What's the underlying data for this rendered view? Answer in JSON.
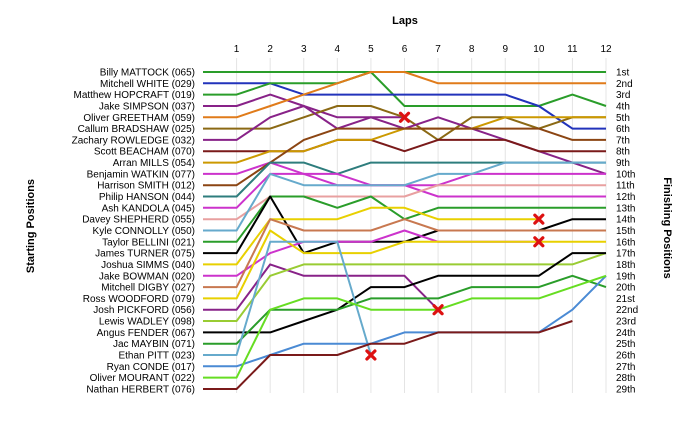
{
  "chart_data": {
    "type": "line",
    "title": "",
    "xlabel": "Laps",
    "ylabel_left": "Starting Positions",
    "ylabel_right": "Finishing Positions",
    "laps": [
      1,
      2,
      3,
      4,
      5,
      6,
      7,
      8,
      9,
      10,
      11,
      12
    ],
    "finishing_labels": [
      "1st",
      "2nd",
      "3rd",
      "4th",
      "5th",
      "6th",
      "7th",
      "8th",
      "9th",
      "10th",
      "11th",
      "12th",
      "13th",
      "14th",
      "15th",
      "16th",
      "17th",
      "18th",
      "19th",
      "20th",
      "21st",
      "22nd",
      "23rd",
      "24th",
      "25th",
      "26th",
      "27th",
      "28th",
      "29th"
    ],
    "grid": true,
    "retirement_marker": "red-x",
    "series": [
      {
        "name": "Billy MATTOCK (065)",
        "color": "#2a9d2a",
        "positions": [
          1,
          1,
          1,
          1,
          1,
          4,
          4,
          4,
          4,
          4,
          3,
          4
        ]
      },
      {
        "name": "Mitchell WHITE (029)",
        "color": "#2233bb",
        "positions": [
          2,
          2,
          3,
          3,
          3,
          3,
          3,
          3,
          3,
          4,
          6,
          6
        ]
      },
      {
        "name": "Matthew HOPCRAFT (019)",
        "color": "#2a9d2a",
        "positions": [
          3,
          2,
          2,
          2,
          1,
          1,
          1,
          1,
          1,
          1,
          1,
          1
        ]
      },
      {
        "name": "Jake SIMPSON (037)",
        "color": "#882288",
        "positions": [
          4,
          3,
          4,
          5,
          5,
          5,
          null,
          null,
          null,
          null,
          null,
          null
        ],
        "retired_at": {
          "lap": 6,
          "position": 5
        }
      },
      {
        "name": "Oliver GREETHAM (059)",
        "color": "#e07b1a",
        "positions": [
          5,
          4,
          3,
          2,
          1,
          1,
          2,
          2,
          2,
          2,
          2,
          2
        ]
      },
      {
        "name": "Callum BRADSHAW (025)",
        "color": "#8b6914",
        "positions": [
          6,
          6,
          5,
          4,
          4,
          5,
          7,
          5,
          5,
          6,
          5,
          5
        ]
      },
      {
        "name": "Zachary ROWLEDGE (032)",
        "color": "#882288",
        "positions": [
          7,
          5,
          4,
          6,
          5,
          6,
          5,
          6,
          7,
          8,
          9,
          10
        ]
      },
      {
        "name": "Scott BEACHAM (070)",
        "color": "#7a1a1a",
        "positions": [
          8,
          8,
          8,
          7,
          7,
          8,
          7,
          7,
          7,
          8,
          8,
          8
        ]
      },
      {
        "name": "Arran MILLS (054)",
        "color": "#cc9900",
        "positions": [
          9,
          8,
          8,
          7,
          7,
          6,
          6,
          6,
          5,
          5,
          5,
          5
        ]
      },
      {
        "name": "Benjamin WATKIN (077)",
        "color": "#cc33cc",
        "positions": [
          10,
          9,
          10,
          11,
          11,
          11,
          11,
          10,
          10,
          10,
          10,
          10
        ]
      },
      {
        "name": "Harrison SMITH (012)",
        "color": "#8b4513",
        "positions": [
          11,
          9,
          7,
          6,
          6,
          6,
          6,
          6,
          6,
          6,
          7,
          7
        ]
      },
      {
        "name": "Philip HANSON (044)",
        "color": "#2e7d7d",
        "positions": [
          12,
          9,
          9,
          10,
          9,
          9,
          9,
          9,
          9,
          9,
          9,
          9
        ]
      },
      {
        "name": "Ash KANDOLA (045)",
        "color": "#cc33cc",
        "positions": [
          13,
          10,
          10,
          10,
          11,
          11,
          12,
          12,
          12,
          12,
          12,
          12
        ]
      },
      {
        "name": "Davey SHEPHERD (055)",
        "color": "#e8a0a0",
        "positions": [
          14,
          12,
          12,
          12,
          12,
          12,
          11,
          11,
          11,
          11,
          11,
          11
        ]
      },
      {
        "name": "Kyle CONNOLLY (050)",
        "color": "#66aacc",
        "positions": [
          15,
          10,
          11,
          11,
          11,
          11,
          10,
          10,
          9,
          9,
          9,
          9
        ]
      },
      {
        "name": "Taylor BELLINI (021)",
        "color": "#2a9d2a",
        "positions": [
          16,
          12,
          12,
          13,
          12,
          14,
          13,
          13,
          13,
          13,
          13,
          13
        ]
      },
      {
        "name": "James TURNER (075)",
        "color": "#000000",
        "positions": [
          17,
          12,
          17,
          16,
          16,
          16,
          15,
          15,
          15,
          15,
          14,
          14
        ]
      },
      {
        "name": "Joshua SIMMS (040)",
        "color": "#e8d000",
        "positions": [
          18,
          14,
          14,
          14,
          13,
          13,
          14,
          14,
          14,
          14,
          null,
          null
        ],
        "retired_at": {
          "lap": 10,
          "position": 14
        }
      },
      {
        "name": "Jake BOWMAN (020)",
        "color": "#cc33cc",
        "positions": [
          19,
          17,
          16,
          16,
          16,
          15,
          16,
          16,
          16,
          16,
          null,
          null
        ],
        "retired_at": {
          "lap": 10,
          "position": 16
        }
      },
      {
        "name": "Mitchell DIGBY (027)",
        "color": "#c87850",
        "positions": [
          20,
          14,
          15,
          15,
          15,
          14,
          15,
          15,
          15,
          15,
          15,
          15
        ]
      },
      {
        "name": "Ross WOODFORD (079)",
        "color": "#e8d000",
        "positions": [
          21,
          15,
          17,
          17,
          17,
          16,
          16,
          16,
          16,
          16,
          16,
          16
        ]
      },
      {
        "name": "Josh PICKFORD (056)",
        "color": "#882288",
        "positions": [
          22,
          18,
          19,
          19,
          19,
          19,
          22,
          null,
          null,
          null,
          null,
          null
        ],
        "retired_at": {
          "lap": 7,
          "position": 22
        }
      },
      {
        "name": "Lewis WADLEY (098)",
        "color": "#99cc33",
        "positions": [
          23,
          19,
          18,
          18,
          18,
          18,
          18,
          18,
          18,
          18,
          18,
          17
        ]
      },
      {
        "name": "Angus FENDER (067)",
        "color": "#000000",
        "positions": [
          24,
          24,
          23,
          22,
          20,
          20,
          19,
          19,
          19,
          19,
          17,
          17
        ]
      },
      {
        "name": "Jac MAYBIN (071)",
        "color": "#2a9d2a",
        "positions": [
          25,
          22,
          22,
          22,
          21,
          21,
          21,
          20,
          20,
          20,
          19,
          20
        ]
      },
      {
        "name": "Ethan PITT (023)",
        "color": "#66aacc",
        "positions": [
          26,
          16,
          16,
          16,
          26,
          null,
          null,
          null,
          null,
          null,
          null,
          null
        ],
        "retired_at": {
          "lap": 5,
          "position": 26
        }
      },
      {
        "name": "Ryan CONDE (017)",
        "color": "#4a8ad4",
        "positions": [
          27,
          26,
          25,
          25,
          25,
          24,
          24,
          24,
          24,
          24,
          22,
          19
        ]
      },
      {
        "name": "Oliver MOURANT (022)",
        "color": "#66dd22",
        "positions": [
          28,
          22,
          21,
          21,
          22,
          22,
          22,
          21,
          21,
          21,
          20,
          19
        ]
      },
      {
        "name": "Nathan HERBERT (076)",
        "color": "#7a1a1a",
        "positions": [
          29,
          26,
          26,
          26,
          25,
          25,
          24,
          24,
          24,
          24,
          23,
          null
        ]
      }
    ]
  }
}
